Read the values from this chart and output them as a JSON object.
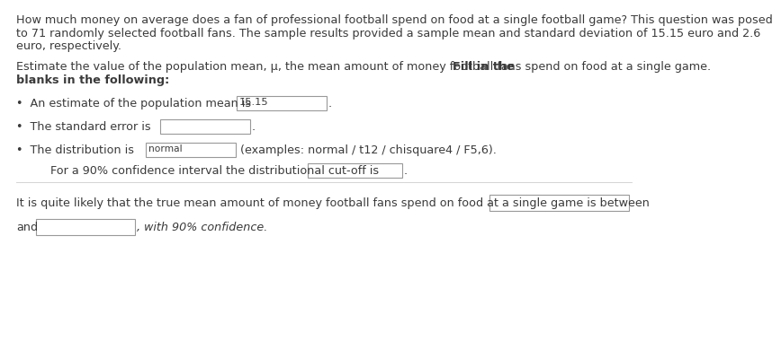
{
  "bg_color": "#ffffff",
  "text_color": "#3a3a3a",
  "p1_line1": "How much money on average does a fan of professional football spend on food at a single football game? This question was posed",
  "p1_line2": "to 71 randomly selected football fans. The sample results provided a sample mean and standard deviation of 15.15 euro and 2.6",
  "p1_line3": "euro, respectively.",
  "p2_normal": "Estimate the value of the population mean, μ, the mean amount of money football fans spend on food at a single game. ",
  "p2_bold1": "Fill in the",
  "p2_bold2": "blanks in the following:",
  "b1_pre": "•  An estimate of the population mean is ",
  "b1_val": "15.15",
  "b2_pre": "•  The standard error is",
  "b3_pre": "•  The distribution is ",
  "b3_val": "normal",
  "b3_hint": "(examples: normal / t12 / chisquare4 / F5,6).",
  "indent_pre": "    For a 90% confidence interval the distributional cut-off is",
  "final_pre": "It is quite likely that the true mean amount of money football fans spend on food at a single game is between",
  "and_pre": "and",
  "with_suf": ", with 90% confidence.",
  "box_edge": "#999999",
  "box_face": "#ffffff",
  "font_size": 9.2
}
